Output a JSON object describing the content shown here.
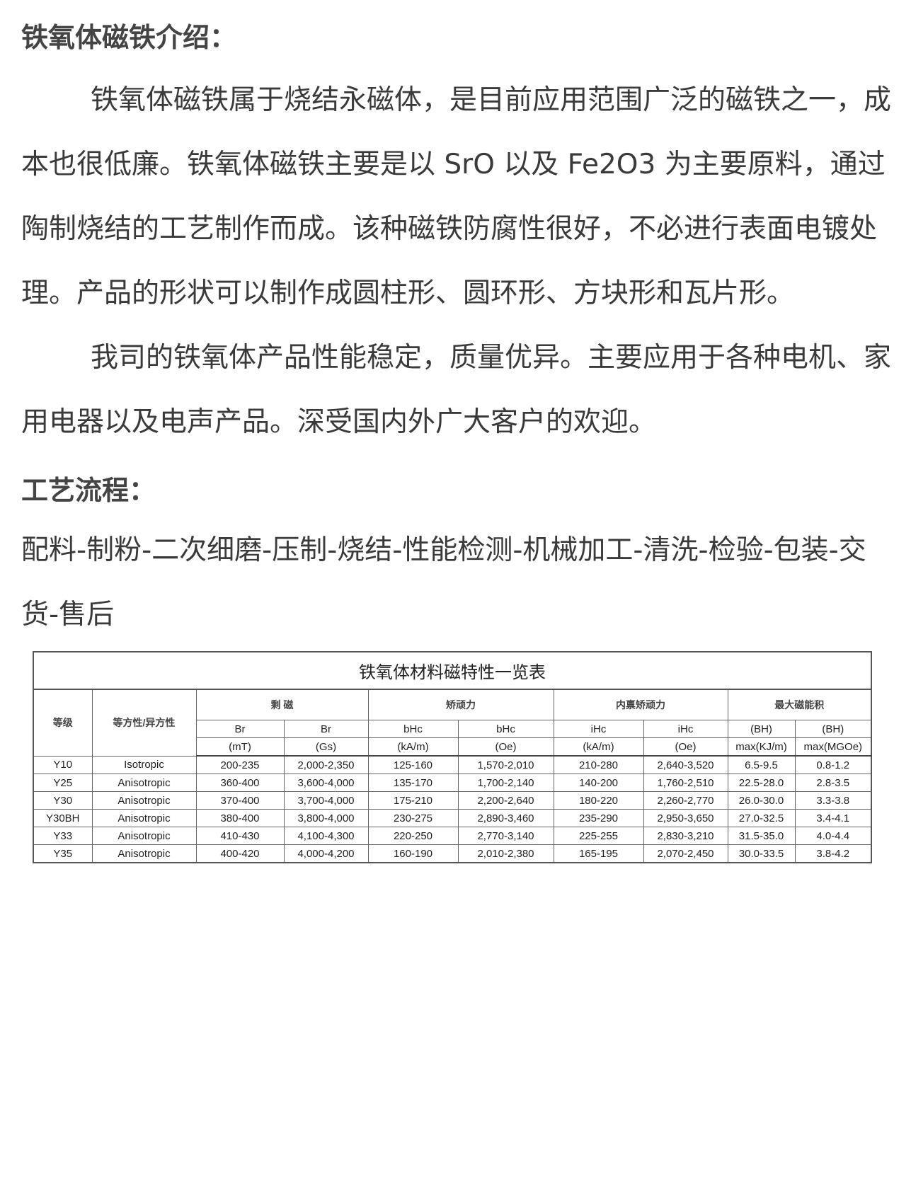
{
  "intro": {
    "heading": "铁氧体磁铁介绍：",
    "paragraph1": "铁氧体磁铁属于烧结永磁体，是目前应用范围广泛的磁铁之一，成本也很低廉。铁氧体磁铁主要是以 SrO 以及 Fe2O3 为主要原料，通过陶制烧结的工艺制作而成。该种磁铁防腐性很好，不必进行表面电镀处理。产品的形状可以制作成圆柱形、圆环形、方块形和瓦片形。",
    "paragraph2": "我司的铁氧体产品性能稳定，质量优异。主要应用于各种电机、家用电器以及电声产品。深受国内外广大客户的欢迎。"
  },
  "process": {
    "heading": "工艺流程：",
    "steps": "配料-制粉-二次细磨-压制-烧结-性能检测-机械加工-清洗-检验-包装-交货-售后"
  },
  "table": {
    "title": "铁氧体材料磁特性一览表",
    "grade_header": "等级",
    "type_header": "等方性/异方性",
    "groups": [
      "剩 磁",
      "矫顽力",
      "内禀矫顽力",
      "最大磁能积"
    ],
    "params": [
      "Br",
      "Br",
      "bHc",
      "bHc",
      "iHc",
      "iHc",
      "(BH)",
      "(BH)"
    ],
    "units": [
      "(mT)",
      "(Gs)",
      "(kA/m)",
      "(Oe)",
      "(kA/m)",
      "(Oe)",
      "max(KJ/m)",
      "max(MGOe)"
    ],
    "rows": [
      [
        "Y10",
        "Isotropic",
        "200-235",
        "2,000-2,350",
        "125-160",
        "1,570-2,010",
        "210-280",
        "2,640-3,520",
        "6.5-9.5",
        "0.8-1.2"
      ],
      [
        "Y25",
        "Anisotropic",
        "360-400",
        "3,600-4,000",
        "135-170",
        "1,700-2,140",
        "140-200",
        "1,760-2,510",
        "22.5-28.0",
        "2.8-3.5"
      ],
      [
        "Y30",
        "Anisotropic",
        "370-400",
        "3,700-4,000",
        "175-210",
        "2,200-2,640",
        "180-220",
        "2,260-2,770",
        "26.0-30.0",
        "3.3-3.8"
      ],
      [
        "Y30BH",
        "Anisotropic",
        "380-400",
        "3,800-4,000",
        "230-275",
        "2,890-3,460",
        "235-290",
        "2,950-3,650",
        "27.0-32.5",
        "3.4-4.1"
      ],
      [
        "Y33",
        "Anisotropic",
        "410-430",
        "4,100-4,300",
        "220-250",
        "2,770-3,140",
        "225-255",
        "2,830-3,210",
        "31.5-35.0",
        "4.0-4.4"
      ],
      [
        "Y35",
        "Anisotropic",
        "400-420",
        "4,000-4,200",
        "160-190",
        "2,010-2,380",
        "165-195",
        "2,070-2,450",
        "30.0-33.5",
        "3.8-4.2"
      ]
    ]
  }
}
